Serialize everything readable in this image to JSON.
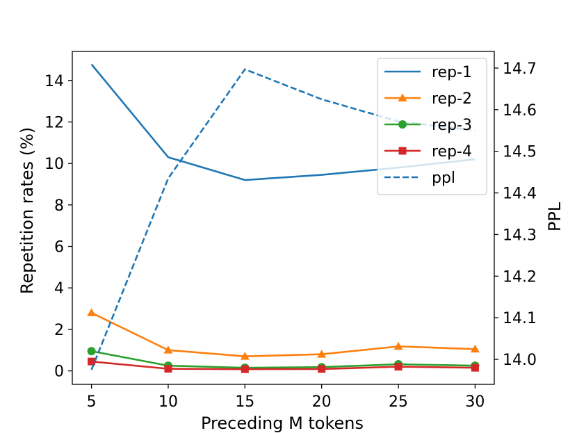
{
  "chart_data": {
    "type": "line",
    "title": "",
    "xlabel": "Preceding M tokens",
    "ylabel_left": "Repetition rates (%)",
    "ylabel_right": "PPL",
    "x": [
      5,
      10,
      15,
      20,
      25,
      30
    ],
    "x_ticks": [
      "5",
      "10",
      "15",
      "20",
      "25",
      "30"
    ],
    "ylim_left": [
      -0.65,
      15.4
    ],
    "y_ticks_left": [
      "0",
      "2",
      "4",
      "6",
      "8",
      "10",
      "12",
      "14"
    ],
    "ylim_right": [
      13.94,
      14.74
    ],
    "y_ticks_right": [
      "14.0",
      "14.1",
      "14.2",
      "14.3",
      "14.4",
      "14.5",
      "14.6",
      "14.7"
    ],
    "legend_position": "top-right",
    "series": [
      {
        "name": "rep-1",
        "axis": "left",
        "color": "#1f77b4",
        "style": "solid",
        "marker": "none",
        "values": [
          14.78,
          10.3,
          9.2,
          9.45,
          9.8,
          10.2
        ]
      },
      {
        "name": "rep-2",
        "axis": "left",
        "color": "#ff7f0e",
        "style": "solid",
        "marker": "triangle",
        "values": [
          2.8,
          1.0,
          0.7,
          0.8,
          1.18,
          1.05
        ]
      },
      {
        "name": "rep-3",
        "axis": "left",
        "color": "#2ca02c",
        "style": "solid",
        "marker": "circle",
        "values": [
          0.95,
          0.25,
          0.15,
          0.18,
          0.32,
          0.25
        ]
      },
      {
        "name": "rep-4",
        "axis": "left",
        "color": "#d62728",
        "style": "solid",
        "marker": "square",
        "values": [
          0.45,
          0.1,
          0.08,
          0.09,
          0.2,
          0.15
        ]
      },
      {
        "name": "ppl",
        "axis": "right",
        "color": "#1f77b4",
        "style": "dashed",
        "marker": "none",
        "values": [
          13.975,
          14.435,
          14.697,
          14.625,
          14.572,
          14.55
        ]
      }
    ]
  }
}
